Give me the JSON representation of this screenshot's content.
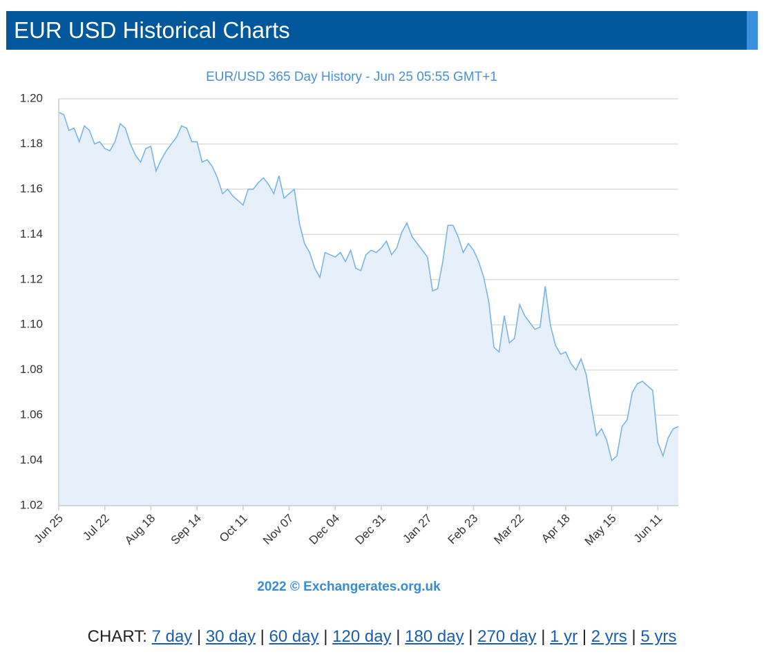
{
  "header": {
    "title": "EUR USD Historical Charts"
  },
  "chart_data": {
    "type": "line",
    "title": "EUR/USD 365 Day History - Jun 25 05:55 GMT+1",
    "credit": "2022 © Exchangerates.org.uk",
    "color": "#7ab4e4",
    "fill": "#e6f0fa",
    "grid": true,
    "categories": [
      "Jun 25",
      null,
      null,
      null,
      null,
      null,
      null,
      null,
      null,
      "Jul 22",
      null,
      null,
      null,
      null,
      null,
      null,
      null,
      null,
      "Aug 18",
      null,
      null,
      null,
      null,
      null,
      null,
      null,
      null,
      "Sep 14",
      null,
      null,
      null,
      null,
      null,
      null,
      null,
      null,
      "Oct 11",
      null,
      null,
      null,
      null,
      null,
      null,
      null,
      null,
      "Nov 07",
      null,
      null,
      null,
      null,
      null,
      null,
      null,
      null,
      "Dec 04",
      null,
      null,
      null,
      null,
      null,
      null,
      null,
      null,
      "Dec 31",
      null,
      null,
      null,
      null,
      null,
      null,
      null,
      null,
      "Jan 27",
      null,
      null,
      null,
      null,
      null,
      null,
      null,
      null,
      "Feb 23",
      null,
      null,
      null,
      null,
      null,
      null,
      null,
      null,
      "Mar 22",
      null,
      null,
      null,
      null,
      null,
      null,
      null,
      null,
      "Apr 18",
      null,
      null,
      null,
      null,
      null,
      null,
      null,
      null,
      "May 15",
      null,
      null,
      null,
      null,
      null,
      null,
      null,
      null,
      "Jun 11",
      null,
      null,
      null,
      null
    ],
    "values": [
      1.194,
      1.193,
      1.186,
      1.187,
      1.181,
      1.188,
      1.186,
      1.18,
      1.181,
      1.178,
      1.177,
      1.181,
      1.189,
      1.187,
      1.18,
      1.175,
      1.172,
      1.178,
      1.179,
      1.168,
      1.173,
      1.177,
      1.18,
      1.183,
      1.188,
      1.187,
      1.181,
      1.181,
      1.172,
      1.173,
      1.17,
      1.165,
      1.158,
      1.16,
      1.157,
      1.155,
      1.153,
      1.16,
      1.16,
      1.163,
      1.165,
      1.162,
      1.158,
      1.166,
      1.156,
      1.158,
      1.16,
      1.145,
      1.136,
      1.132,
      1.125,
      1.121,
      1.132,
      1.131,
      1.13,
      1.132,
      1.128,
      1.133,
      1.125,
      1.124,
      1.131,
      1.133,
      1.132,
      1.134,
      1.137,
      1.131,
      1.134,
      1.141,
      1.145,
      1.139,
      1.136,
      1.133,
      1.13,
      1.115,
      1.116,
      1.128,
      1.144,
      1.144,
      1.139,
      1.132,
      1.136,
      1.133,
      1.128,
      1.121,
      1.11,
      1.09,
      1.088,
      1.104,
      1.092,
      1.094,
      1.109,
      1.104,
      1.101,
      1.098,
      1.099,
      1.117,
      1.1,
      1.091,
      1.087,
      1.088,
      1.083,
      1.08,
      1.085,
      1.078,
      1.064,
      1.051,
      1.054,
      1.049,
      1.04,
      1.042,
      1.055,
      1.058,
      1.07,
      1.074,
      1.075,
      1.073,
      1.071,
      1.048,
      1.042,
      1.05,
      1.054,
      1.055
    ],
    "ylim": [
      1.02,
      1.2
    ],
    "yticks": [
      1.02,
      1.04,
      1.06,
      1.08,
      {
        "value": 1.1,
        "label": "1.10"
      },
      1.12,
      1.14,
      1.16,
      1.18,
      {
        "value": 1.2,
        "label": "1.20"
      }
    ]
  },
  "footer": {
    "label": "CHART:",
    "separator": "|",
    "links": [
      "7 day",
      "30 day",
      "60 day",
      "120 day",
      "180 day",
      "270 day",
      "1 yr",
      "2 yrs",
      "5 yrs"
    ]
  }
}
